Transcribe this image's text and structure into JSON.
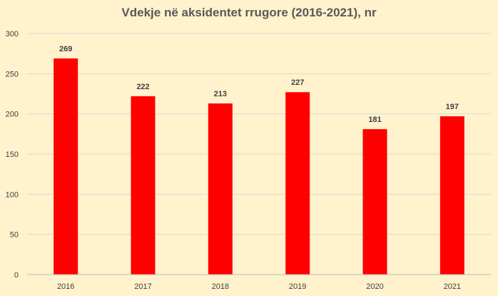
{
  "chart_data": {
    "type": "bar",
    "title": "Vdekje në aksidentet rrugore (2016-2021), nr",
    "xlabel": "",
    "ylabel": "",
    "categories": [
      "2016",
      "2017",
      "2018",
      "2019",
      "2020",
      "2021"
    ],
    "series": [
      {
        "values": [
          269,
          222,
          213,
          227,
          181,
          197
        ]
      }
    ],
    "data_labels": [
      "269",
      "222",
      "213",
      "227",
      "181",
      "197"
    ],
    "ylim": [
      0,
      300
    ],
    "yticks": [
      "0",
      "50",
      "100",
      "150",
      "200",
      "250",
      "300"
    ],
    "grid": true,
    "legend": "none",
    "colors": {
      "bar": "#FF0000",
      "background": "#FFF2CC",
      "grid": "#D9D9D9",
      "text": "#404040"
    }
  }
}
